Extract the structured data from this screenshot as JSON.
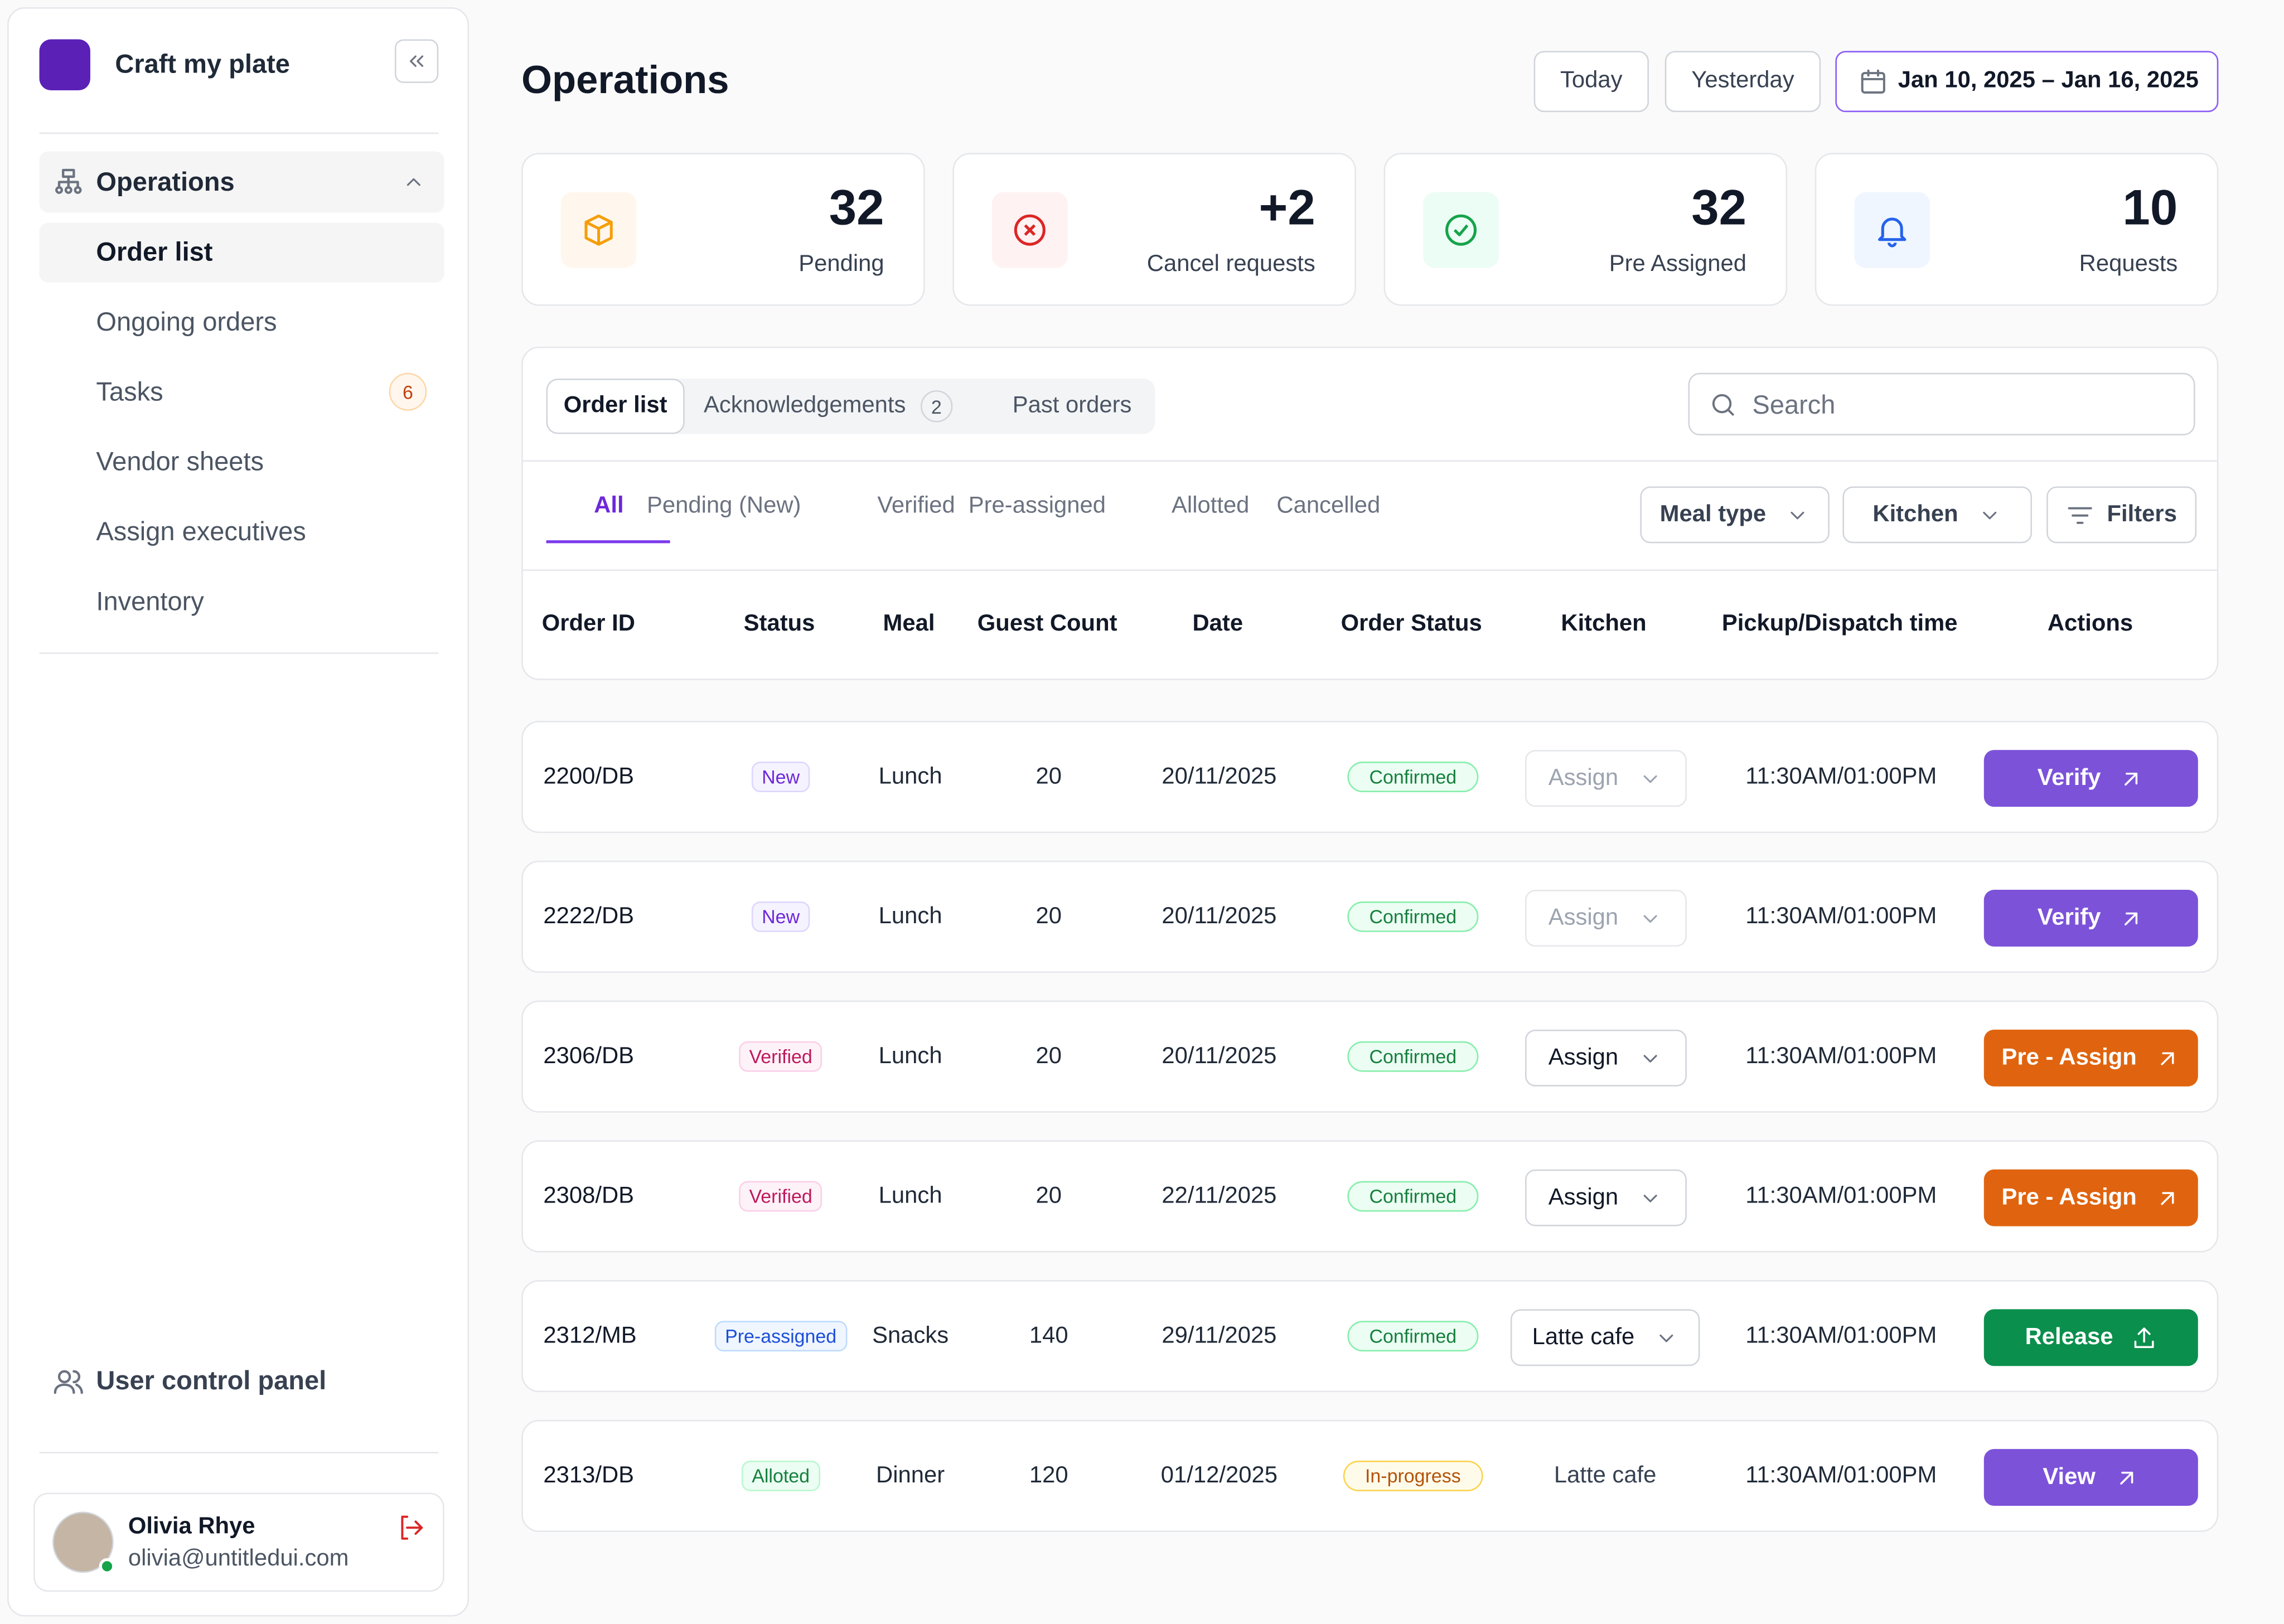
{
  "sidebar": {
    "brand": "Craft my plate",
    "section": "Operations",
    "items": [
      {
        "label": "Order list"
      },
      {
        "label": "Ongoing orders"
      },
      {
        "label": "Tasks",
        "badge": 6
      },
      {
        "label": "Vendor sheets"
      },
      {
        "label": "Assign executives"
      },
      {
        "label": "Inventory"
      }
    ],
    "footer_link": "User control panel",
    "user": {
      "name": "Olivia Rhye",
      "email": "olivia@untitledui.com"
    }
  },
  "header": {
    "title": "Operations",
    "date_buttons": [
      "Today",
      "Yesterday"
    ],
    "date_range": "Jan 10, 2025 – Jan 16, 2025"
  },
  "stats": [
    {
      "value": 32,
      "caption": "Pending"
    },
    {
      "value": 2,
      "value_label": "+2",
      "caption": "Cancel requests"
    },
    {
      "value": 32,
      "caption": "Pre Assigned"
    },
    {
      "value": 10,
      "caption": "Requests"
    }
  ],
  "tabs": [
    {
      "label": "Order list"
    },
    {
      "label": "Acknowledgements",
      "badge": 2
    },
    {
      "label": "Past orders"
    }
  ],
  "search_placeholder": "Search",
  "status_tabs": [
    "All",
    "Pending (New)",
    "Verified",
    "Pre-assigned",
    "Allotted",
    "Cancelled"
  ],
  "filters": [
    "Meal type",
    "Kitchen",
    "Filters"
  ],
  "table": {
    "columns": [
      "Order ID",
      "Status",
      "Meal",
      "Guest Count",
      "Date",
      "Order Status",
      "Kitchen",
      "Pickup/Dispatch time",
      "Actions"
    ],
    "rows": [
      [
        "2200/DB",
        "New",
        "Lunch",
        20,
        "20/11/2025",
        "Confirmed",
        "Assign",
        "11:30AM/01:00PM",
        "Verify"
      ],
      [
        "2222/DB",
        "New",
        "Lunch",
        20,
        "20/11/2025",
        "Confirmed",
        "Assign",
        "11:30AM/01:00PM",
        "Verify"
      ],
      [
        "2306/DB",
        "Verified",
        "Lunch",
        20,
        "20/11/2025",
        "Confirmed",
        "Assign",
        "11:30AM/01:00PM",
        "Pre - Assign"
      ],
      [
        "2308/DB",
        "Verified",
        "Lunch",
        20,
        "22/11/2025",
        "Confirmed",
        "Assign",
        "11:30AM/01:00PM",
        "Pre - Assign"
      ],
      [
        "2312/MB",
        "Pre-assigned",
        "Snacks",
        140,
        "29/11/2025",
        "Confirmed",
        "Latte cafe",
        "11:30AM/01:00PM",
        "Release"
      ],
      [
        "2313/DB",
        "Alloted",
        "Dinner",
        120,
        "01/12/2025",
        "In-progress",
        "Latte cafe",
        "11:30AM/01:00PM",
        "View"
      ]
    ]
  }
}
